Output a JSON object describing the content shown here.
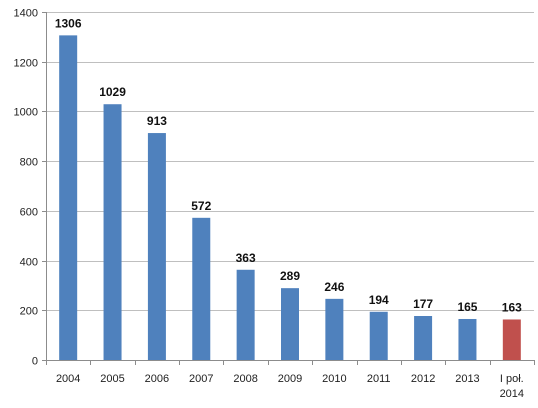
{
  "chart_data": {
    "type": "bar",
    "title": "",
    "xlabel": "",
    "ylabel": "",
    "categories": [
      "2004",
      "2005",
      "2006",
      "2007",
      "2008",
      "2009",
      "2010",
      "2011",
      "2012",
      "2013",
      "I poł.\n2014"
    ],
    "values": [
      1306,
      1029,
      913,
      572,
      363,
      289,
      246,
      194,
      177,
      165,
      163
    ],
    "value_labels": [
      "1306",
      "1029",
      "913",
      "572",
      "363",
      "289",
      "246",
      "194",
      "177",
      "165",
      "163"
    ],
    "ylim": [
      0,
      1400
    ],
    "yticks": [
      "0",
      "200",
      "400",
      "600",
      "800",
      "1000",
      "1200",
      "1400"
    ],
    "grid": "horizontal",
    "legend": "none",
    "colors": {
      "bar": "#4F81BD",
      "highlight_bar": "#C0504D",
      "grid": "#BFBFBF",
      "axis": "#8C8C8C"
    },
    "highlight_index": 10
  }
}
